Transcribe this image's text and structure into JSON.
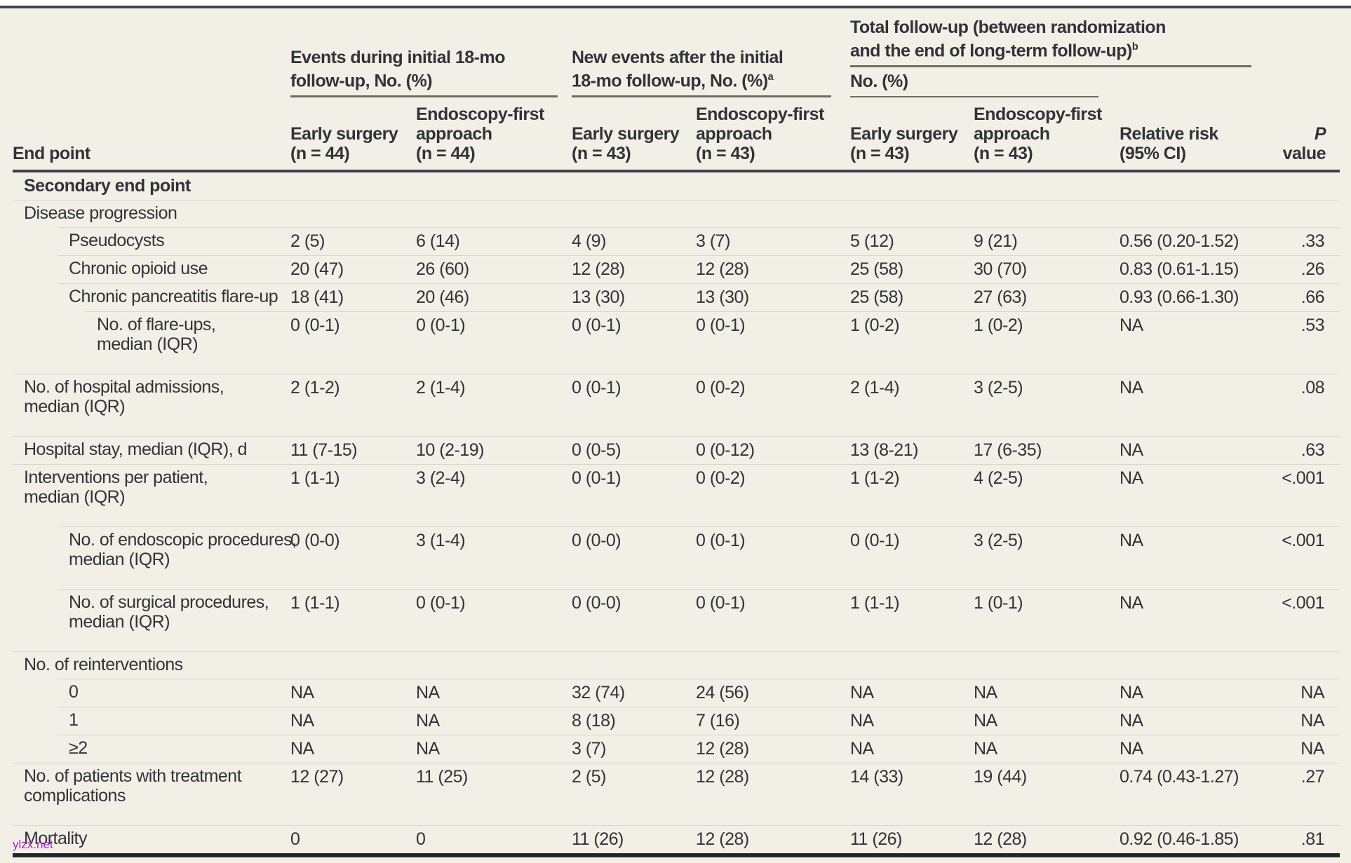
{
  "header": {
    "end_point": "End point",
    "p_value": {
      "italic": "P",
      "rest": " value"
    },
    "groups": [
      {
        "line1": "Events during initial 18-mo",
        "line2": "follow-up, No. (%)",
        "sup": ""
      },
      {
        "line1": "New events after the initial",
        "line2": "18-mo follow-up, No. (%)",
        "sup": "a"
      },
      {
        "line1": "Total follow-up (between randomization",
        "line2": "and the end of long-term follow-up)",
        "sup": "b",
        "subtitle": "No. (%)"
      }
    ],
    "subcols": [
      {
        "l1": "Early surgery",
        "l2": "(n = 44)"
      },
      {
        "l1": "Endoscopy-first",
        "l2": "approach",
        "l3": "(n = 44)"
      },
      {
        "l1": "Early surgery",
        "l2": "(n = 43)"
      },
      {
        "l1": "Endoscopy-first",
        "l2": "approach",
        "l3": "(n = 43)"
      },
      {
        "l1": "Early surgery",
        "l2": "(n = 43)"
      },
      {
        "l1": "Endoscopy-first",
        "l2": "approach",
        "l3": "(n = 43)"
      },
      {
        "l1": "Relative risk",
        "l2": "(95% CI)"
      }
    ]
  },
  "rows": [
    {
      "label": "Secondary end point",
      "indent": 0,
      "section": true,
      "values": []
    },
    {
      "label": "Disease progression",
      "indent": 0,
      "values": []
    },
    {
      "label": "Pseudocysts",
      "indent": 1,
      "values": [
        "2 (5)",
        "6 (14)",
        "4 (9)",
        "3 (7)",
        "5 (12)",
        "9 (21)",
        "0.56 (0.20-1.52)",
        ".33"
      ]
    },
    {
      "label": "Chronic opioid use",
      "indent": 1,
      "values": [
        "20 (47)",
        "26 (60)",
        "12 (28)",
        "12 (28)",
        "25 (58)",
        "30 (70)",
        "0.83 (0.61-1.15)",
        ".26"
      ]
    },
    {
      "label": "Chronic pancreatitis flare-up",
      "indent": 1,
      "values": [
        "18 (41)",
        "20 (46)",
        "13 (30)",
        "13 (30)",
        "25 (58)",
        "27 (63)",
        "0.93 (0.66-1.30)",
        ".66"
      ]
    },
    {
      "label": "No. of flare-ups,",
      "label2": "median (IQR)",
      "indent": 2,
      "values": [
        "0 (0-1)",
        "0 (0-1)",
        "0 (0-1)",
        "0 (0-1)",
        "1 (0-2)",
        "1 (0-2)",
        "NA",
        ".53"
      ]
    },
    {
      "label": "No. of hospital admissions,",
      "label2": "median (IQR)",
      "indent": 0,
      "values": [
        "2 (1-2)",
        "2 (1-4)",
        "0 (0-1)",
        "0 (0-2)",
        "2 (1-4)",
        "3 (2-5)",
        "NA",
        ".08"
      ]
    },
    {
      "label": "Hospital stay, median (IQR), d",
      "indent": 0,
      "values": [
        "11 (7-15)",
        "10 (2-19)",
        "0 (0-5)",
        "0 (0-12)",
        "13 (8-21)",
        "17 (6-35)",
        "NA",
        ".63"
      ]
    },
    {
      "label": "Interventions per patient,",
      "label2": "median (IQR)",
      "indent": 0,
      "values": [
        "1 (1-1)",
        "3 (2-4)",
        "0 (0-1)",
        "0 (0-2)",
        "1 (1-2)",
        "4 (2-5)",
        "NA",
        "<.001"
      ]
    },
    {
      "label": "No. of endoscopic procedures,",
      "label2": "median (IQR)",
      "indent": 1,
      "values": [
        "0 (0-0)",
        "3 (1-4)",
        "0 (0-0)",
        "0 (0-1)",
        "0 (0-1)",
        "3 (2-5)",
        "NA",
        "<.001"
      ]
    },
    {
      "label": "No. of surgical procedures,",
      "label2": "median (IQR)",
      "indent": 1,
      "values": [
        "1 (1-1)",
        "0 (0-1)",
        "0 (0-0)",
        "0 (0-1)",
        "1 (1-1)",
        "1 (0-1)",
        "NA",
        "<.001"
      ]
    },
    {
      "label": "No. of reinterventions",
      "indent": 0,
      "values": []
    },
    {
      "label": "0",
      "indent": 1,
      "values": [
        "NA",
        "NA",
        "32 (74)",
        "24 (56)",
        "NA",
        "NA",
        "NA",
        "NA"
      ]
    },
    {
      "label": "1",
      "indent": 1,
      "values": [
        "NA",
        "NA",
        "8 (18)",
        "7 (16)",
        "NA",
        "NA",
        "NA",
        "NA"
      ]
    },
    {
      "label": "≥2",
      "indent": 1,
      "values": [
        "NA",
        "NA",
        "3 (7)",
        "12 (28)",
        "NA",
        "NA",
        "NA",
        "NA"
      ]
    },
    {
      "label": "No. of patients with treatment",
      "label2": "complications",
      "indent": 0,
      "values": [
        "12 (27)",
        "11 (25)",
        "2 (5)",
        "12 (28)",
        "14 (33)",
        "19 (44)",
        "0.74 (0.43-1.27)",
        ".27"
      ]
    },
    {
      "label": "Mortality",
      "indent": 0,
      "values": [
        "0",
        "0",
        "11 (26)",
        "12 (28)",
        "11 (26)",
        "12 (28)",
        "0.92 (0.46-1.85)",
        ".81"
      ]
    }
  ],
  "watermark": "ylzx.net",
  "colors": {
    "background": "#f2f0e6",
    "text": "#303338",
    "row_separator": "#d9d6cb",
    "dark_rule": "#3a3f46",
    "group_rule": "#6f6c64",
    "watermark": "#a428c8"
  }
}
